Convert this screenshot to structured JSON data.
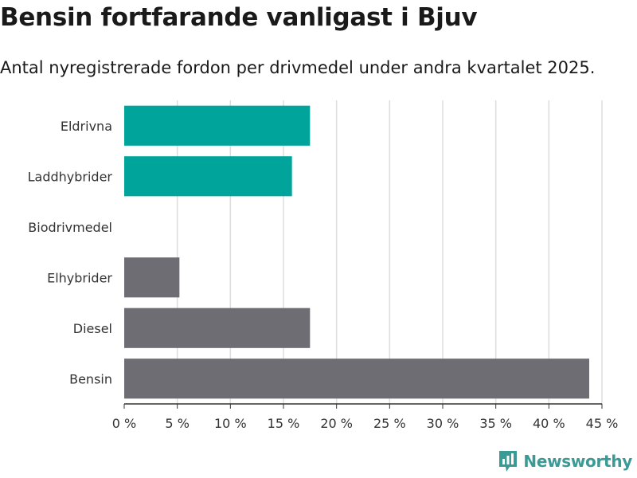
{
  "header": {
    "title": "Bensin fortfarande vanligast i Bjuv",
    "subtitle": "Antal nyregistrerade fordon per drivmedel under andra kvartalet 2025."
  },
  "brand": {
    "name": "Newsworthy",
    "color": "#3a9a94"
  },
  "chart_data": {
    "type": "bar",
    "orientation": "horizontal",
    "categories": [
      "Eldrivna",
      "Laddhybrider",
      "Biodrivmedel",
      "Elhybrider",
      "Diesel",
      "Bensin"
    ],
    "values": [
      17.5,
      15.8,
      0,
      5.2,
      17.5,
      43.8
    ],
    "unit": "%",
    "xlim": [
      0,
      45
    ],
    "xticks": [
      "0 %",
      "5 %",
      "10 %",
      "15 %",
      "20 %",
      "25 %",
      "30 %",
      "35 %",
      "40 %",
      "45 %"
    ],
    "xtick_values": [
      0,
      5,
      10,
      15,
      20,
      25,
      30,
      35,
      40,
      45
    ],
    "grid": true,
    "colors": {
      "highlight": "#00a49a",
      "default": "#6e6d73"
    },
    "bar_colors": [
      "#00a49a",
      "#00a49a",
      "#6e6d73",
      "#6e6d73",
      "#6e6d73",
      "#6e6d73"
    ]
  }
}
